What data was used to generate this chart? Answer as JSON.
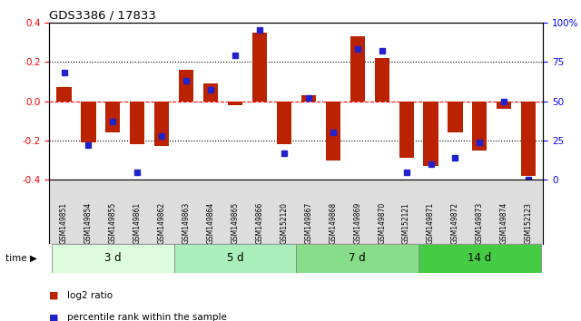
{
  "title": "GDS3386 / 17833",
  "samples": [
    "GSM149851",
    "GSM149854",
    "GSM149855",
    "GSM149861",
    "GSM149862",
    "GSM149863",
    "GSM149864",
    "GSM149865",
    "GSM149866",
    "GSM152120",
    "GSM149867",
    "GSM149868",
    "GSM149869",
    "GSM149870",
    "GSM152121",
    "GSM149871",
    "GSM149872",
    "GSM149873",
    "GSM149874",
    "GSM152123"
  ],
  "log2ratio": [
    0.07,
    -0.21,
    -0.16,
    -0.22,
    -0.23,
    0.16,
    0.09,
    -0.02,
    0.35,
    -0.22,
    0.03,
    -0.3,
    0.33,
    0.22,
    -0.29,
    -0.33,
    -0.16,
    -0.25,
    -0.04,
    -0.38
  ],
  "percentile": [
    68,
    22,
    37,
    5,
    28,
    63,
    57,
    79,
    95,
    17,
    52,
    30,
    83,
    82,
    5,
    10,
    14,
    24,
    50,
    0
  ],
  "groups": [
    {
      "label": "3 d",
      "start": 0,
      "end": 5,
      "color": "#ddfcdd"
    },
    {
      "label": "5 d",
      "start": 5,
      "end": 10,
      "color": "#aaeebb"
    },
    {
      "label": "7 d",
      "start": 10,
      "end": 15,
      "color": "#88dd88"
    },
    {
      "label": "14 d",
      "start": 15,
      "end": 20,
      "color": "#44cc44"
    }
  ],
  "bar_color": "#bb2200",
  "dot_color": "#2222cc",
  "bg_color": "#dddddd",
  "ylim_left": [
    -0.4,
    0.4
  ],
  "ylim_right": [
    0,
    100
  ]
}
